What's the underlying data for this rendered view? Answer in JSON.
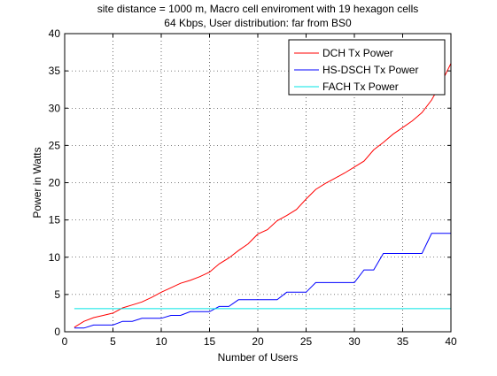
{
  "chart_data": {
    "type": "line",
    "title_lines": [
      "site distance = 1000 m, Macro cell enviroment with 19 hexagon cells",
      "64 Kbps, User distribution: far from BS0"
    ],
    "xlabel": "Number of Users",
    "ylabel": "Power in Watts",
    "xlim": [
      0,
      40
    ],
    "ylim": [
      0,
      40
    ],
    "xticks": [
      0,
      5,
      10,
      15,
      20,
      25,
      30,
      35,
      40
    ],
    "yticks": [
      0,
      5,
      10,
      15,
      20,
      25,
      30,
      35,
      40
    ],
    "grid": "dotted",
    "legend_position": "top-right",
    "x": [
      1,
      2,
      3,
      4,
      5,
      6,
      7,
      8,
      9,
      10,
      11,
      12,
      13,
      14,
      15,
      16,
      17,
      18,
      19,
      20,
      21,
      22,
      23,
      24,
      25,
      26,
      27,
      28,
      29,
      30,
      31,
      32,
      33,
      34,
      35,
      36,
      37,
      38,
      39,
      40
    ],
    "series": [
      {
        "name": "DCH Tx Power",
        "color": "#ff0000",
        "values": [
          0.6,
          1.4,
          1.9,
          2.2,
          2.5,
          3.2,
          3.6,
          4.0,
          4.6,
          5.3,
          5.9,
          6.5,
          6.9,
          7.4,
          8.0,
          9.1,
          9.9,
          10.9,
          11.8,
          13.1,
          13.7,
          14.9,
          15.6,
          16.4,
          17.8,
          19.1,
          19.9,
          20.6,
          21.3,
          22.1,
          22.9,
          24.4,
          25.4,
          26.5,
          27.4,
          28.3,
          29.4,
          31.1,
          33.4,
          36.0
        ]
      },
      {
        "name": "HS-DSCH Tx Power",
        "color": "#0000ff",
        "values": [
          0.5,
          0.5,
          0.9,
          0.9,
          0.9,
          1.4,
          1.4,
          1.8,
          1.8,
          1.8,
          2.2,
          2.2,
          2.7,
          2.7,
          2.7,
          3.4,
          3.4,
          4.3,
          4.3,
          4.3,
          4.3,
          4.3,
          5.3,
          5.3,
          5.3,
          6.6,
          6.6,
          6.6,
          6.6,
          6.6,
          8.3,
          8.3,
          10.5,
          10.5,
          10.5,
          10.5,
          10.5,
          13.2,
          13.2,
          13.2
        ]
      },
      {
        "name": "FACH Tx Power",
        "color": "#00e5e5",
        "values": [
          3.1,
          3.1,
          3.1,
          3.1,
          3.1,
          3.1,
          3.1,
          3.1,
          3.1,
          3.1,
          3.1,
          3.1,
          3.1,
          3.1,
          3.1,
          3.1,
          3.1,
          3.1,
          3.1,
          3.1,
          3.1,
          3.1,
          3.1,
          3.1,
          3.1,
          3.1,
          3.1,
          3.1,
          3.1,
          3.1,
          3.1,
          3.1,
          3.1,
          3.1,
          3.1,
          3.1,
          3.1,
          3.1,
          3.1,
          3.1
        ]
      }
    ]
  }
}
